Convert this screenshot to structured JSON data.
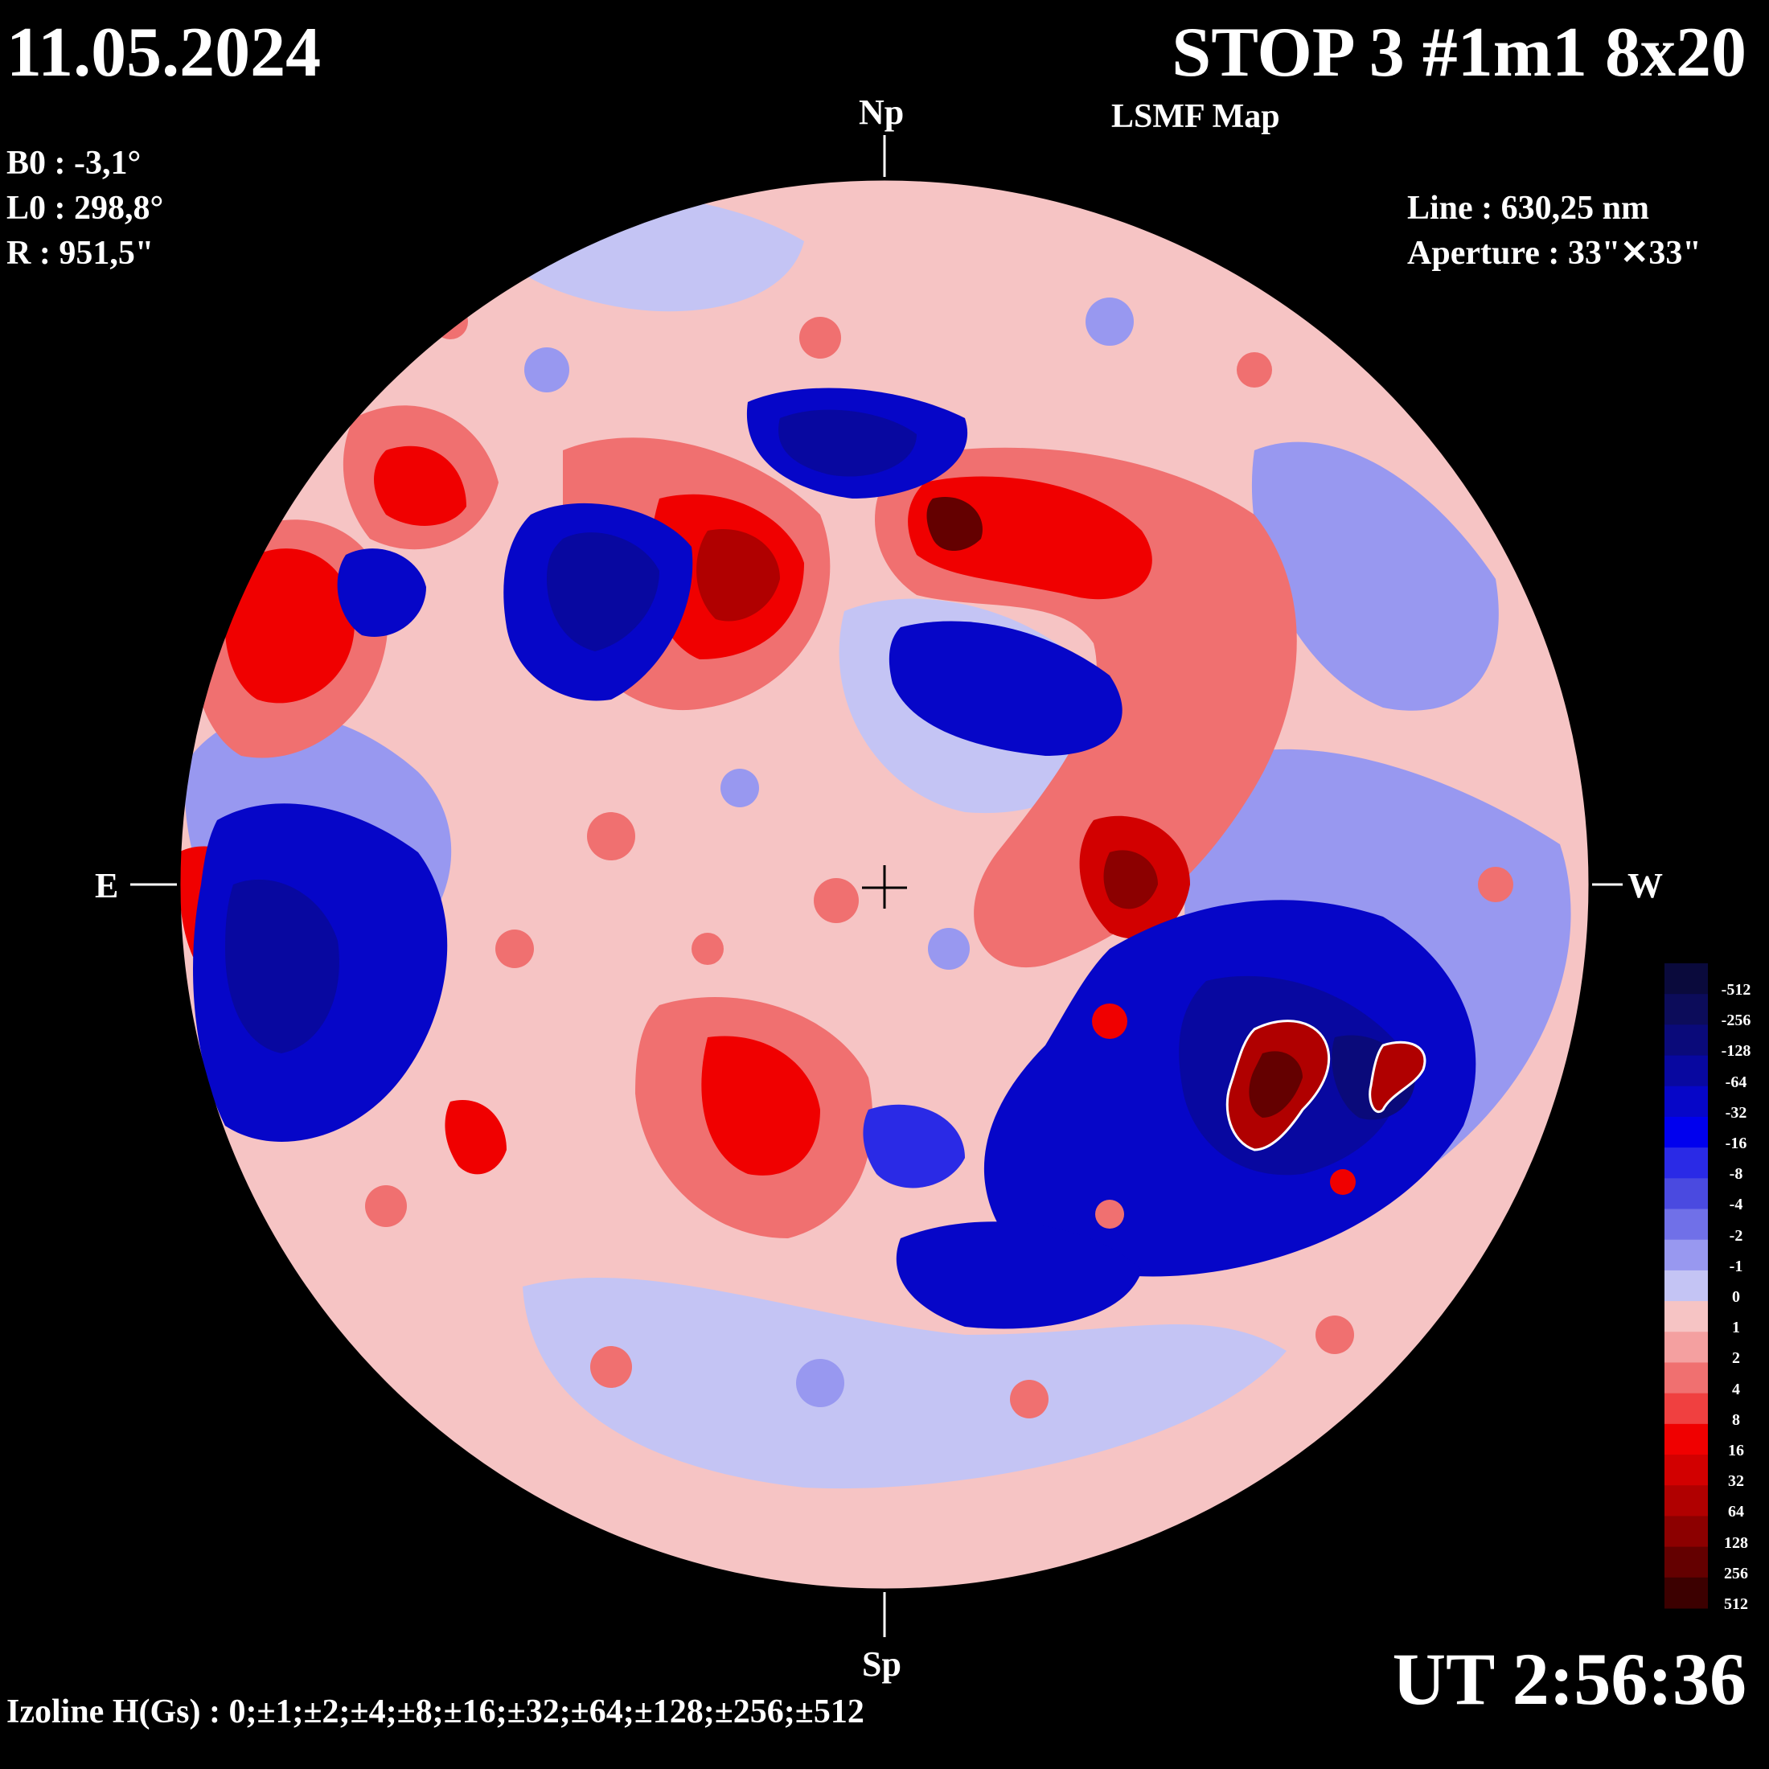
{
  "header": {
    "date": "11.05.2024",
    "title": "STOP 3 #1m1 8x20",
    "subtitle": "LSMF  Map"
  },
  "params": {
    "b0": "B0 : -3,1°",
    "l0": "L0 : 298,8°",
    "radius": "R  : 951,5\"",
    "line": "Line :  630,25 nm",
    "aperture": "Aperture : 33\"✕33\""
  },
  "directions": {
    "north": "Np",
    "south": "Sp",
    "east": "E",
    "west": "W"
  },
  "footer": {
    "ut": "UT 2:56:36",
    "izoline": "Izoline H(Gs) : 0;±1;±2;±4;±8;±16;±32;±64;±128;±256;±512"
  },
  "colorbar": {
    "labels": [
      "-512",
      "-256",
      "-128",
      "-64",
      "-32",
      "-16",
      "-8",
      "-4",
      "-2",
      "-1",
      "0",
      "1",
      "2",
      "4",
      "8",
      "16",
      "32",
      "64",
      "128",
      "256",
      "512"
    ],
    "colors": [
      "#0a0a3c",
      "#0c0c5a",
      "#0a0a7a",
      "#0808a0",
      "#0606c8",
      "#0000ee",
      "#2a2ae6",
      "#4a4ae0",
      "#7070e8",
      "#9898f0",
      "#c4c4f4",
      "#f6c4c4",
      "#f4a0a0",
      "#f07070",
      "#f04040",
      "#f00000",
      "#d20000",
      "#b00000",
      "#8c0000",
      "#640000",
      "#3c0000"
    ]
  }
}
